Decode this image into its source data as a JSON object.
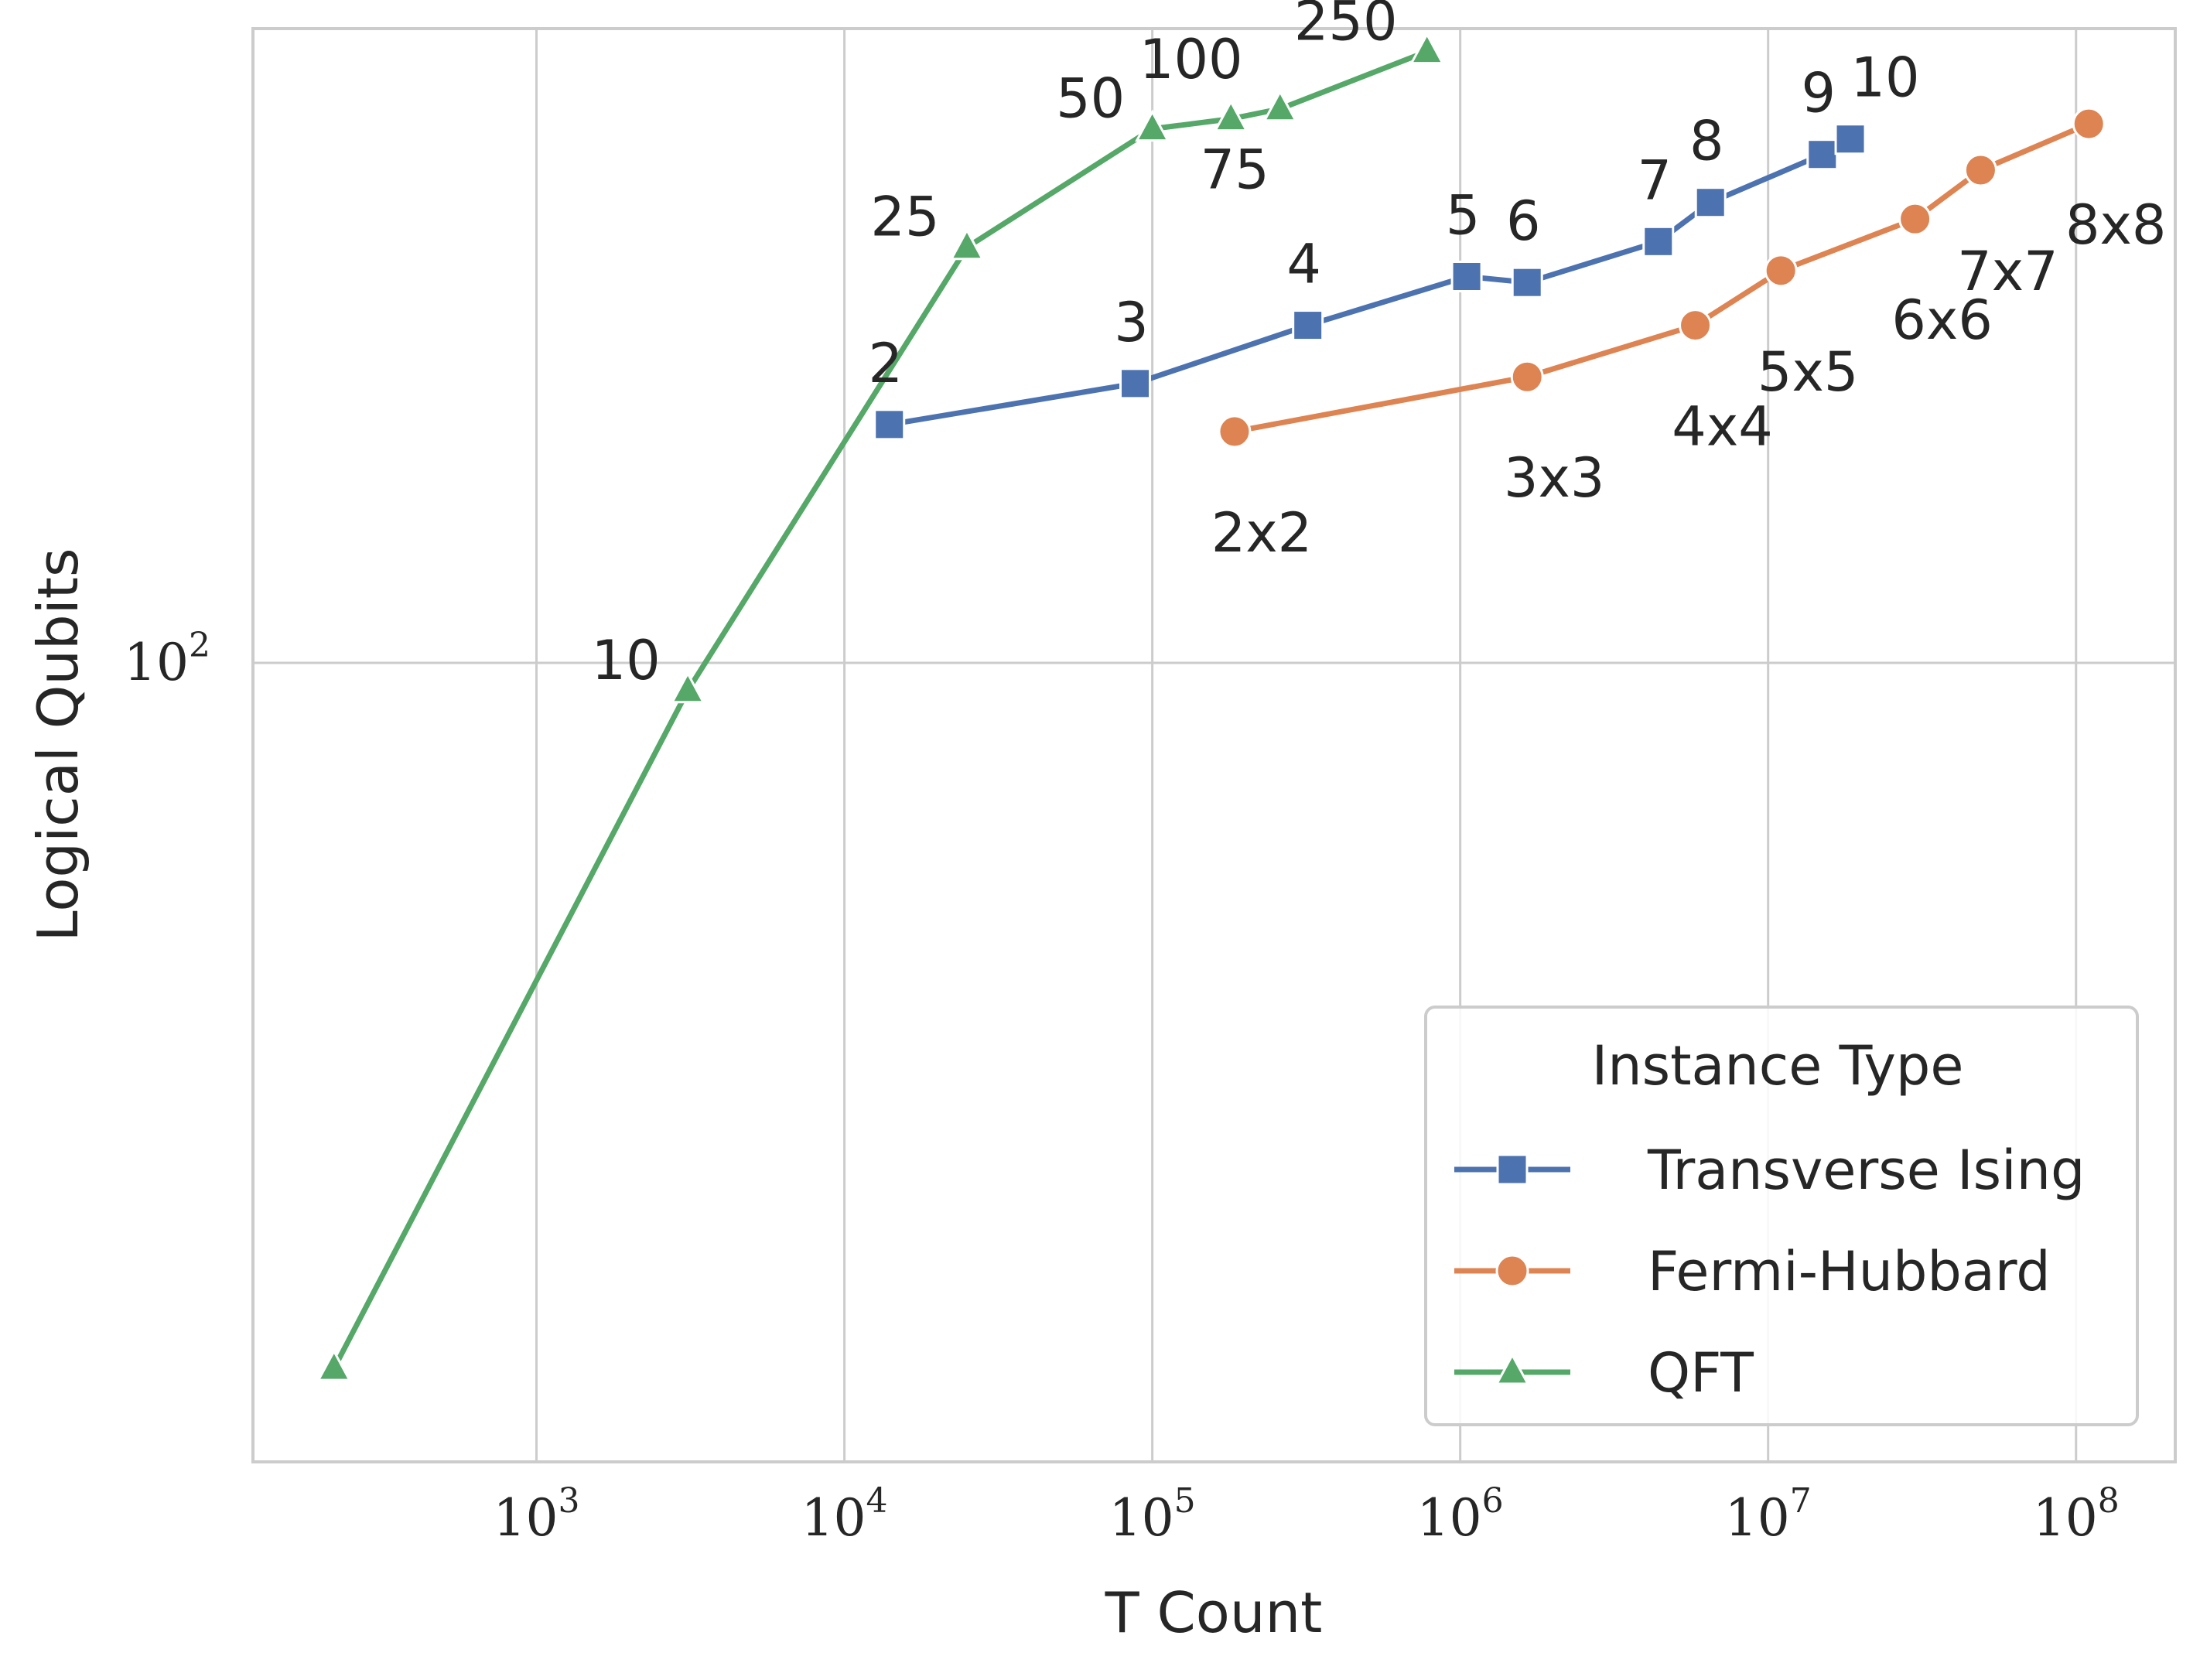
{
  "chart_data": {
    "type": "line",
    "title": "",
    "xlabel": "T Count",
    "ylabel": "Logical Qubits",
    "xscale": "log",
    "yscale": "log",
    "xlim": [
      120,
      210000000
    ],
    "ylim": [
      41.5,
      201
    ],
    "grid": true,
    "x_ticks": [
      {
        "value": 1000,
        "base": "10",
        "exp": "3"
      },
      {
        "value": 10000,
        "base": "10",
        "exp": "4"
      },
      {
        "value": 100000,
        "base": "10",
        "exp": "5"
      },
      {
        "value": 1000000,
        "base": "10",
        "exp": "6"
      },
      {
        "value": 10000000,
        "base": "10",
        "exp": "7"
      },
      {
        "value": 100000000,
        "base": "10",
        "exp": "8"
      }
    ],
    "y_ticks": [
      {
        "value": 100,
        "base": "10",
        "exp": "2"
      }
    ],
    "legend": {
      "title": "Instance Type",
      "position": "lower-right"
    },
    "series": [
      {
        "name": "Transverse Ising",
        "color": "#4c72b0",
        "marker": "square",
        "points": [
          {
            "x": 14000,
            "y": 130,
            "label": "2"
          },
          {
            "x": 88000,
            "y": 136,
            "label": "3"
          },
          {
            "x": 320000,
            "y": 145,
            "label": "4"
          },
          {
            "x": 1050000,
            "y": 153,
            "label": "5"
          },
          {
            "x": 1650000,
            "y": 152,
            "label": "6"
          },
          {
            "x": 4400000,
            "y": 159,
            "label": "7"
          },
          {
            "x": 6500000,
            "y": 166,
            "label": "8"
          },
          {
            "x": 15000000,
            "y": 175,
            "label": "9"
          },
          {
            "x": 18500000,
            "y": 178,
            "label": "10"
          }
        ]
      },
      {
        "name": "Fermi-Hubbard",
        "color": "#dd8452",
        "marker": "circle",
        "points": [
          {
            "x": 185000,
            "y": 129,
            "label": "2x2"
          },
          {
            "x": 1650000,
            "y": 137,
            "label": "3x3"
          },
          {
            "x": 5800000,
            "y": 145,
            "label": "4x4"
          },
          {
            "x": 11000000,
            "y": 154,
            "label": "5x5"
          },
          {
            "x": 30000000,
            "y": 163,
            "label": "6x6"
          },
          {
            "x": 49000000,
            "y": 172,
            "label": "7x7"
          },
          {
            "x": 110000000,
            "y": 181,
            "label": "8x8"
          }
        ]
      },
      {
        "name": "QFT",
        "color": "#55a868",
        "marker": "triangle",
        "points": [
          {
            "x": 220,
            "y": 46,
            "label": ""
          },
          {
            "x": 3100,
            "y": 97,
            "label": "10"
          },
          {
            "x": 25000,
            "y": 158,
            "label": "25"
          },
          {
            "x": 100000,
            "y": 180,
            "label": "50"
          },
          {
            "x": 180000,
            "y": 182,
            "label": "75"
          },
          {
            "x": 260000,
            "y": 184,
            "label": "100"
          },
          {
            "x": 780000,
            "y": 196,
            "label": "250"
          }
        ]
      }
    ]
  }
}
